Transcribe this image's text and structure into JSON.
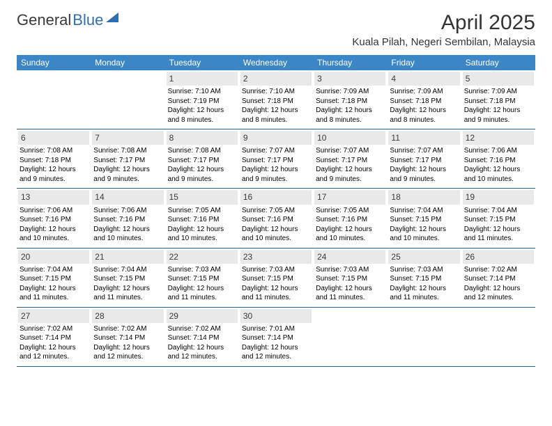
{
  "logo": {
    "text1": "General",
    "text2": "Blue"
  },
  "header": {
    "month_year": "April 2025",
    "location": "Kuala Pilah, Negeri Sembilan, Malaysia"
  },
  "colors": {
    "header_bg": "#3b86c7",
    "header_text": "#ffffff",
    "daynum_bg": "#e9e9e9",
    "text": "#000000",
    "week_divider": "#2b5d8a"
  },
  "days_of_week": [
    "Sunday",
    "Monday",
    "Tuesday",
    "Wednesday",
    "Thursday",
    "Friday",
    "Saturday"
  ],
  "weeks": [
    [
      {
        "n": "",
        "sunrise": "",
        "sunset": "",
        "daylight": ""
      },
      {
        "n": "",
        "sunrise": "",
        "sunset": "",
        "daylight": ""
      },
      {
        "n": "1",
        "sunrise": "Sunrise: 7:10 AM",
        "sunset": "Sunset: 7:19 PM",
        "daylight": "Daylight: 12 hours and 8 minutes."
      },
      {
        "n": "2",
        "sunrise": "Sunrise: 7:10 AM",
        "sunset": "Sunset: 7:18 PM",
        "daylight": "Daylight: 12 hours and 8 minutes."
      },
      {
        "n": "3",
        "sunrise": "Sunrise: 7:09 AM",
        "sunset": "Sunset: 7:18 PM",
        "daylight": "Daylight: 12 hours and 8 minutes."
      },
      {
        "n": "4",
        "sunrise": "Sunrise: 7:09 AM",
        "sunset": "Sunset: 7:18 PM",
        "daylight": "Daylight: 12 hours and 8 minutes."
      },
      {
        "n": "5",
        "sunrise": "Sunrise: 7:09 AM",
        "sunset": "Sunset: 7:18 PM",
        "daylight": "Daylight: 12 hours and 9 minutes."
      }
    ],
    [
      {
        "n": "6",
        "sunrise": "Sunrise: 7:08 AM",
        "sunset": "Sunset: 7:18 PM",
        "daylight": "Daylight: 12 hours and 9 minutes."
      },
      {
        "n": "7",
        "sunrise": "Sunrise: 7:08 AM",
        "sunset": "Sunset: 7:17 PM",
        "daylight": "Daylight: 12 hours and 9 minutes."
      },
      {
        "n": "8",
        "sunrise": "Sunrise: 7:08 AM",
        "sunset": "Sunset: 7:17 PM",
        "daylight": "Daylight: 12 hours and 9 minutes."
      },
      {
        "n": "9",
        "sunrise": "Sunrise: 7:07 AM",
        "sunset": "Sunset: 7:17 PM",
        "daylight": "Daylight: 12 hours and 9 minutes."
      },
      {
        "n": "10",
        "sunrise": "Sunrise: 7:07 AM",
        "sunset": "Sunset: 7:17 PM",
        "daylight": "Daylight: 12 hours and 9 minutes."
      },
      {
        "n": "11",
        "sunrise": "Sunrise: 7:07 AM",
        "sunset": "Sunset: 7:17 PM",
        "daylight": "Daylight: 12 hours and 9 minutes."
      },
      {
        "n": "12",
        "sunrise": "Sunrise: 7:06 AM",
        "sunset": "Sunset: 7:16 PM",
        "daylight": "Daylight: 12 hours and 10 minutes."
      }
    ],
    [
      {
        "n": "13",
        "sunrise": "Sunrise: 7:06 AM",
        "sunset": "Sunset: 7:16 PM",
        "daylight": "Daylight: 12 hours and 10 minutes."
      },
      {
        "n": "14",
        "sunrise": "Sunrise: 7:06 AM",
        "sunset": "Sunset: 7:16 PM",
        "daylight": "Daylight: 12 hours and 10 minutes."
      },
      {
        "n": "15",
        "sunrise": "Sunrise: 7:05 AM",
        "sunset": "Sunset: 7:16 PM",
        "daylight": "Daylight: 12 hours and 10 minutes."
      },
      {
        "n": "16",
        "sunrise": "Sunrise: 7:05 AM",
        "sunset": "Sunset: 7:16 PM",
        "daylight": "Daylight: 12 hours and 10 minutes."
      },
      {
        "n": "17",
        "sunrise": "Sunrise: 7:05 AM",
        "sunset": "Sunset: 7:16 PM",
        "daylight": "Daylight: 12 hours and 10 minutes."
      },
      {
        "n": "18",
        "sunrise": "Sunrise: 7:04 AM",
        "sunset": "Sunset: 7:15 PM",
        "daylight": "Daylight: 12 hours and 10 minutes."
      },
      {
        "n": "19",
        "sunrise": "Sunrise: 7:04 AM",
        "sunset": "Sunset: 7:15 PM",
        "daylight": "Daylight: 12 hours and 11 minutes."
      }
    ],
    [
      {
        "n": "20",
        "sunrise": "Sunrise: 7:04 AM",
        "sunset": "Sunset: 7:15 PM",
        "daylight": "Daylight: 12 hours and 11 minutes."
      },
      {
        "n": "21",
        "sunrise": "Sunrise: 7:04 AM",
        "sunset": "Sunset: 7:15 PM",
        "daylight": "Daylight: 12 hours and 11 minutes."
      },
      {
        "n": "22",
        "sunrise": "Sunrise: 7:03 AM",
        "sunset": "Sunset: 7:15 PM",
        "daylight": "Daylight: 12 hours and 11 minutes."
      },
      {
        "n": "23",
        "sunrise": "Sunrise: 7:03 AM",
        "sunset": "Sunset: 7:15 PM",
        "daylight": "Daylight: 12 hours and 11 minutes."
      },
      {
        "n": "24",
        "sunrise": "Sunrise: 7:03 AM",
        "sunset": "Sunset: 7:15 PM",
        "daylight": "Daylight: 12 hours and 11 minutes."
      },
      {
        "n": "25",
        "sunrise": "Sunrise: 7:03 AM",
        "sunset": "Sunset: 7:15 PM",
        "daylight": "Daylight: 12 hours and 11 minutes."
      },
      {
        "n": "26",
        "sunrise": "Sunrise: 7:02 AM",
        "sunset": "Sunset: 7:14 PM",
        "daylight": "Daylight: 12 hours and 12 minutes."
      }
    ],
    [
      {
        "n": "27",
        "sunrise": "Sunrise: 7:02 AM",
        "sunset": "Sunset: 7:14 PM",
        "daylight": "Daylight: 12 hours and 12 minutes."
      },
      {
        "n": "28",
        "sunrise": "Sunrise: 7:02 AM",
        "sunset": "Sunset: 7:14 PM",
        "daylight": "Daylight: 12 hours and 12 minutes."
      },
      {
        "n": "29",
        "sunrise": "Sunrise: 7:02 AM",
        "sunset": "Sunset: 7:14 PM",
        "daylight": "Daylight: 12 hours and 12 minutes."
      },
      {
        "n": "30",
        "sunrise": "Sunrise: 7:01 AM",
        "sunset": "Sunset: 7:14 PM",
        "daylight": "Daylight: 12 hours and 12 minutes."
      },
      {
        "n": "",
        "sunrise": "",
        "sunset": "",
        "daylight": ""
      },
      {
        "n": "",
        "sunrise": "",
        "sunset": "",
        "daylight": ""
      },
      {
        "n": "",
        "sunrise": "",
        "sunset": "",
        "daylight": ""
      }
    ]
  ]
}
